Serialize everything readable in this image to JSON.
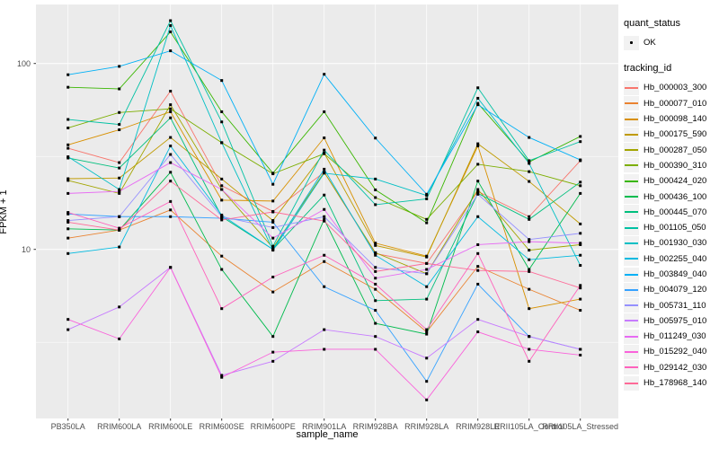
{
  "chart_data": {
    "type": "line",
    "title": "",
    "xlabel": "sample_name",
    "ylabel": "FPKM + 1",
    "y_scale": "log10",
    "ylim": [
      1.2,
      210
    ],
    "y_ticks": [
      10,
      100
    ],
    "y_tick_labels": [
      "10",
      "100"
    ],
    "y_minor_ticks": [
      3.162,
      31.62
    ],
    "grid": "on",
    "legend_position": "right",
    "colors": {
      "panel_bg": "#EBEBEB",
      "grid": "#FFFFFF",
      "legend_key_bg": "#F2F2F2",
      "point": "#000000",
      "axis_text": "#4D4D4D",
      "tick_mark": "#333333"
    },
    "legend": {
      "quant_status_title": "quant_status",
      "quant_status_items": [
        {
          "label": "OK",
          "marker": "point",
          "color": "#000000"
        }
      ],
      "tracking_id_title": "tracking_id"
    },
    "categories": [
      "PB350LA",
      "RRIM600LA",
      "RRIM600LE",
      "RRIM600SE",
      "RRIM600PE",
      "RRIM901LA",
      "RRIM928BA",
      "RRIM928LA",
      "RRIM928LE",
      "RRII105LA_Control",
      "RRII105LA_Stressed"
    ],
    "series": [
      {
        "name": "Hb_000003_300",
        "color": "#F8766D",
        "values": [
          35,
          29.3,
          71,
          22,
          16,
          26,
          9.5,
          8.4,
          20.5,
          15,
          30
        ]
      },
      {
        "name": "Hb_000077_010",
        "color": "#EA8331",
        "values": [
          11.5,
          12.7,
          16.3,
          9.2,
          5.9,
          8.6,
          6.1,
          3.6,
          8.1,
          6.1,
          4.7
        ]
      },
      {
        "name": "Hb_000098_140",
        "color": "#D89000",
        "values": [
          36.5,
          44,
          55,
          18.4,
          18.2,
          39.8,
          10.8,
          9.2,
          36,
          4.8,
          5.4
        ]
      },
      {
        "name": "Hb_000175_590",
        "color": "#C09B00",
        "values": [
          24,
          24.2,
          40,
          23.9,
          14.3,
          33,
          10.5,
          9.1,
          37,
          23.2,
          13.7
        ]
      },
      {
        "name": "Hb_000287_050",
        "color": "#A3A500",
        "values": [
          23.5,
          20,
          60,
          21,
          10.2,
          26,
          9.6,
          7.4,
          21,
          9.9,
          10.6
        ]
      },
      {
        "name": "Hb_000390_310",
        "color": "#7CAE00",
        "values": [
          45,
          54.5,
          57,
          37.5,
          25.5,
          32.7,
          19,
          14.5,
          28.7,
          26.2,
          22
        ]
      },
      {
        "name": "Hb_000424_020",
        "color": "#39B600",
        "values": [
          74.5,
          73,
          148,
          55,
          25.7,
          55,
          20.9,
          13.9,
          61,
          29.5,
          40.5
        ]
      },
      {
        "name": "Hb_000436_100",
        "color": "#00BB4E",
        "values": [
          12.9,
          12.7,
          26,
          7.8,
          3.4,
          14.5,
          4,
          3.5,
          23.3,
          7.8,
          20
        ]
      },
      {
        "name": "Hb_000445_070",
        "color": "#00BF7D",
        "values": [
          31,
          27.4,
          51,
          15,
          10,
          19.6,
          5.3,
          5.4,
          20,
          14.5,
          23
        ]
      },
      {
        "name": "Hb_001105_050",
        "color": "#00C1A3",
        "values": [
          50,
          47,
          170,
          48.5,
          10.4,
          34.2,
          17.4,
          18.7,
          74,
          30,
          38
        ]
      },
      {
        "name": "Hb_001930_030",
        "color": "#00BFC4",
        "values": [
          31.5,
          21,
          160,
          37.5,
          9.9,
          25.7,
          23.9,
          19.5,
          65,
          29,
          8.2
        ]
      },
      {
        "name": "Hb_002255_040",
        "color": "#00BAE0",
        "values": [
          9.5,
          10.3,
          36,
          15.3,
          10,
          27,
          9.3,
          6.3,
          15,
          8.8,
          9.3
        ]
      },
      {
        "name": "Hb_003849_040",
        "color": "#00B0F6",
        "values": [
          87,
          96.5,
          117,
          81,
          22.4,
          87.5,
          39.7,
          19.8,
          60,
          40,
          30.3
        ]
      },
      {
        "name": "Hb_004079_120",
        "color": "#35A2FF",
        "values": [
          15.5,
          15,
          15,
          14.7,
          14,
          6.3,
          4.7,
          1.95,
          6.5,
          3.4,
          2.9
        ]
      },
      {
        "name": "Hb_005731_110",
        "color": "#9590FF",
        "values": [
          14.3,
          15,
          32.4,
          15,
          13.1,
          15,
          8,
          7.4,
          19.8,
          11.3,
          12.2
        ]
      },
      {
        "name": "Hb_005975_010",
        "color": "#C77CFF",
        "values": [
          3.7,
          4.9,
          8,
          2.1,
          2.5,
          3.7,
          3.4,
          2.6,
          4.2,
          3.4,
          2.9
        ]
      },
      {
        "name": "Hb_011249_030",
        "color": "#E76BF3",
        "values": [
          20,
          20.5,
          29.3,
          21,
          11.5,
          16.4,
          7,
          7.8,
          10.6,
          11,
          10.8
        ]
      },
      {
        "name": "Hb_015292_040",
        "color": "#FA62DB",
        "values": [
          4.2,
          3.3,
          8,
          2.05,
          2.8,
          2.9,
          2.9,
          1.55,
          3.6,
          2.9,
          2.7
        ]
      },
      {
        "name": "Hb_029142_030",
        "color": "#FF62BC",
        "values": [
          15.8,
          13,
          18.1,
          4.8,
          7.1,
          9.3,
          6.5,
          3.7,
          9.5,
          2.5,
          6.4
        ]
      },
      {
        "name": "Hb_178968_140",
        "color": "#FF6A98",
        "values": [
          14,
          12.7,
          23.3,
          14.4,
          15.9,
          14.2,
          7.6,
          8.4,
          7.7,
          7.6,
          6.2
        ]
      }
    ]
  }
}
